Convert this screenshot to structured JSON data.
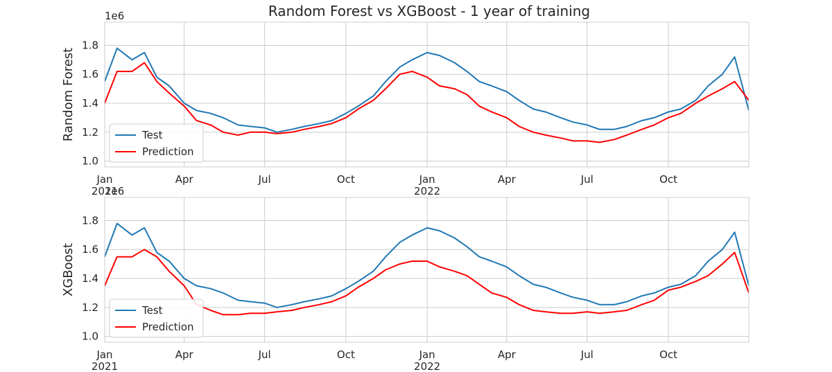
{
  "title": "Random Forest vs XGBoost - 1 year of training",
  "chart_data": [
    {
      "type": "line",
      "ylabel": "Random Forest",
      "offset_label": "1e6",
      "ylim": [
        0.96,
        1.96
      ],
      "yticks": [
        1.0,
        1.2,
        1.4,
        1.6,
        1.8
      ],
      "ytick_labels": [
        "1.0",
        "1.2",
        "1.4",
        "1.6",
        "1.8"
      ],
      "xlim": [
        "2021-01-01",
        "2022-12-31"
      ],
      "xticks": [
        {
          "date": "2021-01-01",
          "label": "Jan",
          "year": "2021"
        },
        {
          "date": "2021-04-01",
          "label": "Apr",
          "year": ""
        },
        {
          "date": "2021-07-01",
          "label": "Jul",
          "year": ""
        },
        {
          "date": "2021-10-01",
          "label": "Oct",
          "year": ""
        },
        {
          "date": "2022-01-01",
          "label": "Jan",
          "year": "2022"
        },
        {
          "date": "2022-04-01",
          "label": "Apr",
          "year": ""
        },
        {
          "date": "2022-07-01",
          "label": "Jul",
          "year": ""
        },
        {
          "date": "2022-10-01",
          "label": "Oct",
          "year": ""
        }
      ],
      "legend": {
        "position": "lower-left",
        "entries": [
          "Test",
          "Prediction"
        ]
      },
      "grid": true,
      "series": [
        {
          "name": "Test",
          "color": "#1f77b4",
          "x": [
            "2021-01-01",
            "2021-01-15",
            "2021-02-01",
            "2021-02-15",
            "2021-03-01",
            "2021-03-15",
            "2021-04-01",
            "2021-04-15",
            "2021-05-01",
            "2021-05-15",
            "2021-06-01",
            "2021-06-15",
            "2021-07-01",
            "2021-07-15",
            "2021-08-01",
            "2021-08-15",
            "2021-09-01",
            "2021-09-15",
            "2021-10-01",
            "2021-10-15",
            "2021-11-01",
            "2021-11-15",
            "2021-12-01",
            "2021-12-15",
            "2022-01-01",
            "2022-01-15",
            "2022-02-01",
            "2022-02-15",
            "2022-03-01",
            "2022-03-15",
            "2022-04-01",
            "2022-04-15",
            "2022-05-01",
            "2022-05-15",
            "2022-06-01",
            "2022-06-15",
            "2022-07-01",
            "2022-07-15",
            "2022-08-01",
            "2022-08-15",
            "2022-09-01",
            "2022-09-15",
            "2022-10-01",
            "2022-10-15",
            "2022-11-01",
            "2022-11-15",
            "2022-12-01",
            "2022-12-15",
            "2022-12-31"
          ],
          "y": [
            1.55,
            1.78,
            1.7,
            1.75,
            1.58,
            1.52,
            1.4,
            1.35,
            1.33,
            1.3,
            1.25,
            1.24,
            1.23,
            1.2,
            1.22,
            1.24,
            1.26,
            1.28,
            1.33,
            1.38,
            1.45,
            1.55,
            1.65,
            1.7,
            1.75,
            1.73,
            1.68,
            1.62,
            1.55,
            1.52,
            1.48,
            1.42,
            1.36,
            1.34,
            1.3,
            1.27,
            1.25,
            1.22,
            1.22,
            1.24,
            1.28,
            1.3,
            1.34,
            1.36,
            1.42,
            1.52,
            1.6,
            1.72,
            1.35
          ]
        },
        {
          "name": "Prediction",
          "color": "#ff0000",
          "x": [
            "2021-01-01",
            "2021-01-15",
            "2021-02-01",
            "2021-02-15",
            "2021-03-01",
            "2021-03-15",
            "2021-04-01",
            "2021-04-15",
            "2021-05-01",
            "2021-05-15",
            "2021-06-01",
            "2021-06-15",
            "2021-07-01",
            "2021-07-15",
            "2021-08-01",
            "2021-08-15",
            "2021-09-01",
            "2021-09-15",
            "2021-10-01",
            "2021-10-15",
            "2021-11-01",
            "2021-11-15",
            "2021-12-01",
            "2021-12-15",
            "2022-01-01",
            "2022-01-15",
            "2022-02-01",
            "2022-02-15",
            "2022-03-01",
            "2022-03-15",
            "2022-04-01",
            "2022-04-15",
            "2022-05-01",
            "2022-05-15",
            "2022-06-01",
            "2022-06-15",
            "2022-07-01",
            "2022-07-15",
            "2022-08-01",
            "2022-08-15",
            "2022-09-01",
            "2022-09-15",
            "2022-10-01",
            "2022-10-15",
            "2022-11-01",
            "2022-11-15",
            "2022-12-01",
            "2022-12-15",
            "2022-12-31"
          ],
          "y": [
            1.4,
            1.62,
            1.62,
            1.68,
            1.55,
            1.47,
            1.38,
            1.28,
            1.25,
            1.2,
            1.18,
            1.2,
            1.2,
            1.19,
            1.2,
            1.22,
            1.24,
            1.26,
            1.3,
            1.36,
            1.42,
            1.5,
            1.6,
            1.62,
            1.58,
            1.52,
            1.5,
            1.46,
            1.38,
            1.34,
            1.3,
            1.24,
            1.2,
            1.18,
            1.16,
            1.14,
            1.14,
            1.13,
            1.15,
            1.18,
            1.22,
            1.25,
            1.3,
            1.33,
            1.4,
            1.45,
            1.5,
            1.55,
            1.42
          ]
        }
      ]
    },
    {
      "type": "line",
      "ylabel": "XGBoost",
      "offset_label": "1e6",
      "ylim": [
        0.96,
        1.96
      ],
      "yticks": [
        1.0,
        1.2,
        1.4,
        1.6,
        1.8
      ],
      "ytick_labels": [
        "1.0",
        "1.2",
        "1.4",
        "1.6",
        "1.8"
      ],
      "xlim": [
        "2021-01-01",
        "2022-12-31"
      ],
      "xticks": [
        {
          "date": "2021-01-01",
          "label": "Jan",
          "year": "2021"
        },
        {
          "date": "2021-04-01",
          "label": "Apr",
          "year": ""
        },
        {
          "date": "2021-07-01",
          "label": "Jul",
          "year": ""
        },
        {
          "date": "2021-10-01",
          "label": "Oct",
          "year": ""
        },
        {
          "date": "2022-01-01",
          "label": "Jan",
          "year": "2022"
        },
        {
          "date": "2022-04-01",
          "label": "Apr",
          "year": ""
        },
        {
          "date": "2022-07-01",
          "label": "Jul",
          "year": ""
        },
        {
          "date": "2022-10-01",
          "label": "Oct",
          "year": ""
        }
      ],
      "legend": {
        "position": "lower-left",
        "entries": [
          "Test",
          "Prediction"
        ]
      },
      "grid": true,
      "series": [
        {
          "name": "Test",
          "color": "#1f77b4",
          "x": [
            "2021-01-01",
            "2021-01-15",
            "2021-02-01",
            "2021-02-15",
            "2021-03-01",
            "2021-03-15",
            "2021-04-01",
            "2021-04-15",
            "2021-05-01",
            "2021-05-15",
            "2021-06-01",
            "2021-06-15",
            "2021-07-01",
            "2021-07-15",
            "2021-08-01",
            "2021-08-15",
            "2021-09-01",
            "2021-09-15",
            "2021-10-01",
            "2021-10-15",
            "2021-11-01",
            "2021-11-15",
            "2021-12-01",
            "2021-12-15",
            "2022-01-01",
            "2022-01-15",
            "2022-02-01",
            "2022-02-15",
            "2022-03-01",
            "2022-03-15",
            "2022-04-01",
            "2022-04-15",
            "2022-05-01",
            "2022-05-15",
            "2022-06-01",
            "2022-06-15",
            "2022-07-01",
            "2022-07-15",
            "2022-08-01",
            "2022-08-15",
            "2022-09-01",
            "2022-09-15",
            "2022-10-01",
            "2022-10-15",
            "2022-11-01",
            "2022-11-15",
            "2022-12-01",
            "2022-12-15",
            "2022-12-31"
          ],
          "y": [
            1.55,
            1.78,
            1.7,
            1.75,
            1.58,
            1.52,
            1.4,
            1.35,
            1.33,
            1.3,
            1.25,
            1.24,
            1.23,
            1.2,
            1.22,
            1.24,
            1.26,
            1.28,
            1.33,
            1.38,
            1.45,
            1.55,
            1.65,
            1.7,
            1.75,
            1.73,
            1.68,
            1.62,
            1.55,
            1.52,
            1.48,
            1.42,
            1.36,
            1.34,
            1.3,
            1.27,
            1.25,
            1.22,
            1.22,
            1.24,
            1.28,
            1.3,
            1.34,
            1.36,
            1.42,
            1.52,
            1.6,
            1.72,
            1.35
          ]
        },
        {
          "name": "Prediction",
          "color": "#ff0000",
          "x": [
            "2021-01-01",
            "2021-01-15",
            "2021-02-01",
            "2021-02-15",
            "2021-03-01",
            "2021-03-15",
            "2021-04-01",
            "2021-04-15",
            "2021-05-01",
            "2021-05-15",
            "2021-06-01",
            "2021-06-15",
            "2021-07-01",
            "2021-07-15",
            "2021-08-01",
            "2021-08-15",
            "2021-09-01",
            "2021-09-15",
            "2021-10-01",
            "2021-10-15",
            "2021-11-01",
            "2021-11-15",
            "2021-12-01",
            "2021-12-15",
            "2022-01-01",
            "2022-01-15",
            "2022-02-01",
            "2022-02-15",
            "2022-03-01",
            "2022-03-15",
            "2022-04-01",
            "2022-04-15",
            "2022-05-01",
            "2022-05-15",
            "2022-06-01",
            "2022-06-15",
            "2022-07-01",
            "2022-07-15",
            "2022-08-01",
            "2022-08-15",
            "2022-09-01",
            "2022-09-15",
            "2022-10-01",
            "2022-10-15",
            "2022-11-01",
            "2022-11-15",
            "2022-12-01",
            "2022-12-15",
            "2022-12-31"
          ],
          "y": [
            1.35,
            1.55,
            1.55,
            1.6,
            1.55,
            1.45,
            1.35,
            1.22,
            1.18,
            1.15,
            1.15,
            1.16,
            1.16,
            1.17,
            1.18,
            1.2,
            1.22,
            1.24,
            1.28,
            1.34,
            1.4,
            1.46,
            1.5,
            1.52,
            1.52,
            1.48,
            1.45,
            1.42,
            1.36,
            1.3,
            1.27,
            1.22,
            1.18,
            1.17,
            1.16,
            1.16,
            1.17,
            1.16,
            1.17,
            1.18,
            1.22,
            1.25,
            1.32,
            1.34,
            1.38,
            1.42,
            1.5,
            1.58,
            1.3
          ]
        }
      ]
    }
  ]
}
